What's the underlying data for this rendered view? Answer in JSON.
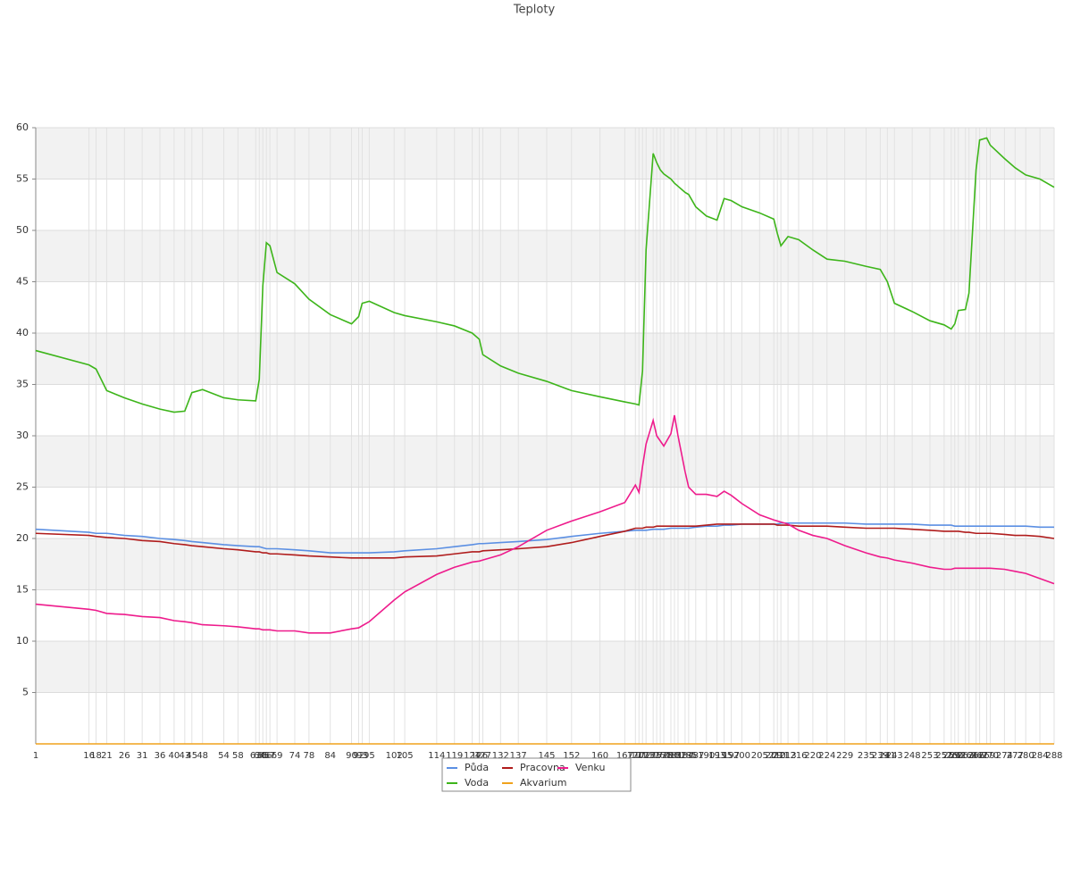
{
  "chart_data": {
    "type": "line",
    "title": "Teploty",
    "x": [
      1,
      16,
      18,
      21,
      26,
      31,
      36,
      40,
      43,
      45,
      48,
      54,
      58,
      63,
      64,
      65,
      66,
      67,
      69,
      74,
      78,
      84,
      90,
      92,
      93,
      95,
      102,
      105,
      114,
      119,
      124,
      126,
      127,
      132,
      137,
      145,
      152,
      160,
      167,
      170,
      171,
      172,
      173,
      175,
      176,
      177,
      178,
      180,
      181,
      182,
      184,
      185,
      187,
      190,
      193,
      195,
      197,
      200,
      205,
      209,
      210,
      211,
      213,
      216,
      220,
      224,
      229,
      235,
      239,
      241,
      243,
      248,
      253,
      257,
      259,
      260,
      261,
      263,
      264,
      266,
      267,
      269,
      270,
      274,
      277,
      280,
      284,
      288
    ],
    "xlim": [
      1,
      288
    ],
    "ylim": [
      0,
      60
    ],
    "yticks": [
      5,
      10,
      15,
      20,
      25,
      30,
      35,
      40,
      45,
      50,
      55,
      60
    ],
    "grid": true,
    "series": [
      {
        "name": "Půda",
        "color": "#5b8fe3",
        "values": [
          20.9,
          20.6,
          20.5,
          20.5,
          20.3,
          20.2,
          20.0,
          19.9,
          19.8,
          19.7,
          19.6,
          19.4,
          19.3,
          19.2,
          19.2,
          19.1,
          19.0,
          19.0,
          19.0,
          18.9,
          18.8,
          18.6,
          18.6,
          18.6,
          18.6,
          18.6,
          18.7,
          18.8,
          19.0,
          19.2,
          19.4,
          19.5,
          19.5,
          19.6,
          19.7,
          19.9,
          20.2,
          20.5,
          20.7,
          20.8,
          20.8,
          20.8,
          20.8,
          20.9,
          20.9,
          20.9,
          20.9,
          21.0,
          21.0,
          21.0,
          21.0,
          21.0,
          21.1,
          21.2,
          21.2,
          21.3,
          21.3,
          21.4,
          21.4,
          21.4,
          21.4,
          21.5,
          21.5,
          21.5,
          21.5,
          21.5,
          21.5,
          21.4,
          21.4,
          21.4,
          21.4,
          21.4,
          21.3,
          21.3,
          21.3,
          21.2,
          21.2,
          21.2,
          21.2,
          21.2,
          21.2,
          21.2,
          21.2,
          21.2,
          21.2,
          21.2,
          21.1,
          21.1
        ]
      },
      {
        "name": "Pracovna",
        "color": "#b01c1c",
        "values": [
          20.5,
          20.3,
          20.2,
          20.1,
          20.0,
          19.8,
          19.7,
          19.5,
          19.4,
          19.3,
          19.2,
          19.0,
          18.9,
          18.7,
          18.7,
          18.6,
          18.6,
          18.5,
          18.5,
          18.4,
          18.3,
          18.2,
          18.1,
          18.1,
          18.1,
          18.1,
          18.1,
          18.2,
          18.3,
          18.5,
          18.7,
          18.7,
          18.8,
          18.9,
          19.0,
          19.2,
          19.6,
          20.2,
          20.7,
          21.0,
          21.0,
          21.0,
          21.1,
          21.1,
          21.2,
          21.2,
          21.2,
          21.2,
          21.2,
          21.2,
          21.2,
          21.2,
          21.2,
          21.3,
          21.4,
          21.4,
          21.4,
          21.4,
          21.4,
          21.4,
          21.3,
          21.3,
          21.3,
          21.2,
          21.2,
          21.2,
          21.1,
          21.0,
          21.0,
          21.0,
          21.0,
          20.9,
          20.8,
          20.7,
          20.7,
          20.7,
          20.7,
          20.6,
          20.6,
          20.5,
          20.5,
          20.5,
          20.5,
          20.4,
          20.3,
          20.3,
          20.2,
          20.0
        ]
      },
      {
        "name": "Venku",
        "color": "#ee1b8c",
        "values": [
          13.6,
          13.1,
          13.0,
          12.7,
          12.6,
          12.4,
          12.3,
          12.0,
          11.9,
          11.8,
          11.6,
          11.5,
          11.4,
          11.2,
          11.2,
          11.1,
          11.1,
          11.1,
          11.0,
          11.0,
          10.8,
          10.8,
          11.2,
          11.3,
          11.5,
          11.9,
          14.0,
          14.8,
          16.5,
          17.2,
          17.7,
          17.8,
          17.9,
          18.4,
          19.2,
          20.8,
          21.7,
          22.6,
          23.5,
          25.2,
          24.5,
          27.0,
          29.2,
          31.5,
          30.0,
          29.5,
          29.0,
          30.2,
          32.0,
          30.0,
          26.5,
          25.0,
          24.3,
          24.3,
          24.1,
          24.6,
          24.2,
          23.4,
          22.3,
          21.8,
          21.7,
          21.6,
          21.4,
          20.8,
          20.3,
          20.0,
          19.3,
          18.6,
          18.2,
          18.1,
          17.9,
          17.6,
          17.2,
          17.0,
          17.0,
          17.1,
          17.1,
          17.1,
          17.1,
          17.1,
          17.1,
          17.1,
          17.1,
          17.0,
          16.8,
          16.6,
          16.1,
          15.6
        ]
      },
      {
        "name": "Voda",
        "color": "#3db51a",
        "values": [
          38.3,
          36.9,
          36.5,
          34.4,
          33.7,
          33.1,
          32.6,
          32.3,
          32.4,
          34.2,
          34.5,
          33.7,
          33.5,
          33.4,
          35.5,
          44.6,
          48.8,
          48.5,
          45.9,
          44.8,
          43.3,
          41.8,
          40.9,
          41.6,
          42.9,
          43.1,
          42.0,
          41.7,
          41.1,
          40.7,
          40.0,
          39.4,
          37.9,
          36.8,
          36.1,
          35.3,
          34.4,
          33.8,
          33.3,
          33.1,
          33.0,
          36.3,
          48.1,
          57.5,
          56.6,
          55.9,
          55.5,
          55.0,
          54.6,
          54.3,
          53.7,
          53.5,
          52.3,
          51.4,
          51.0,
          53.1,
          52.9,
          52.3,
          51.7,
          51.1,
          49.7,
          48.5,
          49.4,
          49.1,
          48.1,
          47.2,
          47.0,
          46.5,
          46.2,
          45.0,
          42.9,
          42.1,
          41.2,
          40.8,
          40.4,
          40.9,
          42.2,
          42.3,
          43.9,
          55.9,
          58.8,
          59.0,
          58.3,
          57.0,
          56.1,
          55.4,
          55.0,
          54.2
        ]
      },
      {
        "name": "Akvarium",
        "color": "#f0a21c",
        "values": [
          0,
          0,
          0,
          0,
          0,
          0,
          0,
          0,
          0,
          0,
          0,
          0,
          0,
          0,
          0,
          0,
          0,
          0,
          0,
          0,
          0,
          0,
          0,
          0,
          0,
          0,
          0,
          0,
          0,
          0,
          0,
          0,
          0,
          0,
          0,
          0,
          0,
          0,
          0,
          0,
          0,
          0,
          0,
          0,
          0,
          0,
          0,
          0,
          0,
          0,
          0,
          0,
          0,
          0,
          0,
          0,
          0,
          0,
          0,
          0,
          0,
          0,
          0,
          0,
          0,
          0,
          0,
          0,
          0,
          0,
          0,
          0,
          0,
          0,
          0,
          0,
          0,
          0,
          0,
          0,
          0,
          0,
          0,
          0,
          0,
          0,
          0,
          0
        ]
      }
    ]
  }
}
